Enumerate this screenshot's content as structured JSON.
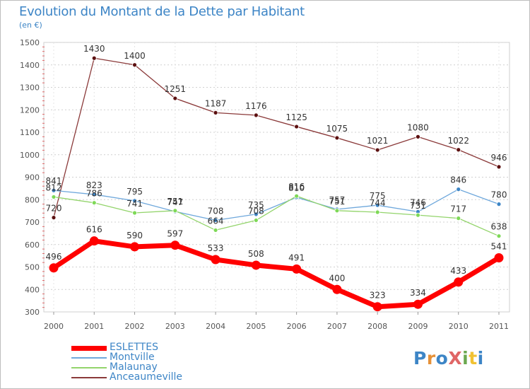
{
  "title": "Evolution du Montant de la Dette par Habitant",
  "subtitle": "(en €)",
  "logo_text": "ProXiti",
  "chart_data": {
    "type": "line",
    "title": "Evolution du Montant de la Dette par Habitant",
    "subtitle": "(en €)",
    "x": [
      "2000",
      "2001",
      "2002",
      "2003",
      "2004",
      "2005",
      "2006",
      "2007",
      "2008",
      "2009",
      "2010",
      "2011"
    ],
    "ylim": [
      300,
      1500
    ],
    "yticks": [
      300,
      400,
      500,
      600,
      700,
      800,
      900,
      1000,
      1100,
      1200,
      1300,
      1400,
      1500
    ],
    "grid": "horizontal-dashed",
    "legend_position": "bottom-left",
    "series": [
      {
        "name": "ESLETTES",
        "color": "#ff0000",
        "values": [
          496,
          616,
          590,
          597,
          533,
          508,
          491,
          400,
          323,
          334,
          433,
          541
        ]
      },
      {
        "name": "Montville",
        "color": "#6fa8dc",
        "values": [
          841,
          823,
          795,
          747,
          708,
          735,
          810,
          757,
          775,
          746,
          846,
          780
        ]
      },
      {
        "name": "Malaunay",
        "color": "#93d46b",
        "values": [
          812,
          786,
          741,
          751,
          664,
          708,
          816,
          751,
          744,
          731,
          717,
          638
        ]
      },
      {
        "name": "Anceaumeville",
        "color": "#6b1e1e",
        "values": [
          720,
          1430,
          1400,
          1251,
          1187,
          1176,
          1125,
          1075,
          1021,
          1080,
          1022,
          946
        ]
      }
    ]
  }
}
